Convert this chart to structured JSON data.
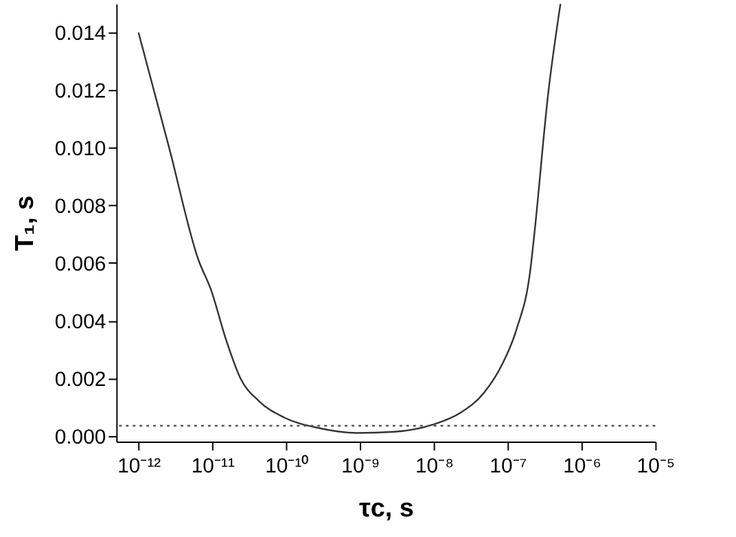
{
  "chart_data": {
    "type": "line",
    "xlabel": "τc, s",
    "ylabel": "T₁, s",
    "log": "x",
    "grid": false,
    "marker": "none",
    "line_style": "solid",
    "xlim": [
      5e-13,
      1e-05
    ],
    "xticks": [
      {
        "value": 1e-12,
        "label": "10⁻¹²"
      },
      {
        "value": 1e-11,
        "label": "10⁻¹¹"
      },
      {
        "value": 1e-10,
        "label": "10⁻¹⁰"
      },
      {
        "value": 1e-09,
        "label": "10⁻⁹"
      },
      {
        "value": 1e-08,
        "label": "10⁻⁸"
      },
      {
        "value": 1e-07,
        "label": "10⁻⁷"
      },
      {
        "value": 1e-06,
        "label": "10⁻⁶"
      },
      {
        "value": 1e-05,
        "label": "10⁻⁵"
      }
    ],
    "ylim": [
      -0.0002,
      0.015
    ],
    "yticks": [
      {
        "value": 0,
        "label": "0.000"
      },
      {
        "value": 0.002,
        "label": "0.002"
      },
      {
        "value": 0.004,
        "label": "0.004"
      },
      {
        "value": 0.006,
        "label": "0.006"
      },
      {
        "value": 0.008,
        "label": "0.008"
      },
      {
        "value": 0.01,
        "label": "0.010"
      },
      {
        "value": 0.012,
        "label": "0.012"
      },
      {
        "value": 0.014,
        "label": "0.014"
      }
    ],
    "x": [
      1e-12,
      2.6e-12,
      6.5e-12,
      9.5e-12,
      1.55e-11,
      2.4e-11,
      4.3e-11,
      9.5e-11,
      2.9e-10,
      9.1e-10,
      2.95e-09,
      9.5e-09,
      2.3e-08,
      4.8e-08,
      8.5e-08,
      1.32e-07,
      2.04e-07,
      2.3e-07,
      3.55e-07,
      5.2e-07
    ],
    "series": [
      {
        "color": "#333333",
        "values": [
          0.014,
          0.01,
          0.0061,
          0.0051,
          0.0033,
          0.002,
          0.0012,
          0.00063,
          0.00026,
          0.0001,
          0.00014,
          0.00038,
          0.0008,
          0.0015,
          0.0025,
          0.0037,
          0.0058,
          0.007,
          0.0119,
          0.015
        ]
      }
    ],
    "ref_lines": [
      {
        "axis": "y",
        "value": 0.00035,
        "color": "#555555",
        "line_style": "dotted"
      }
    ]
  }
}
